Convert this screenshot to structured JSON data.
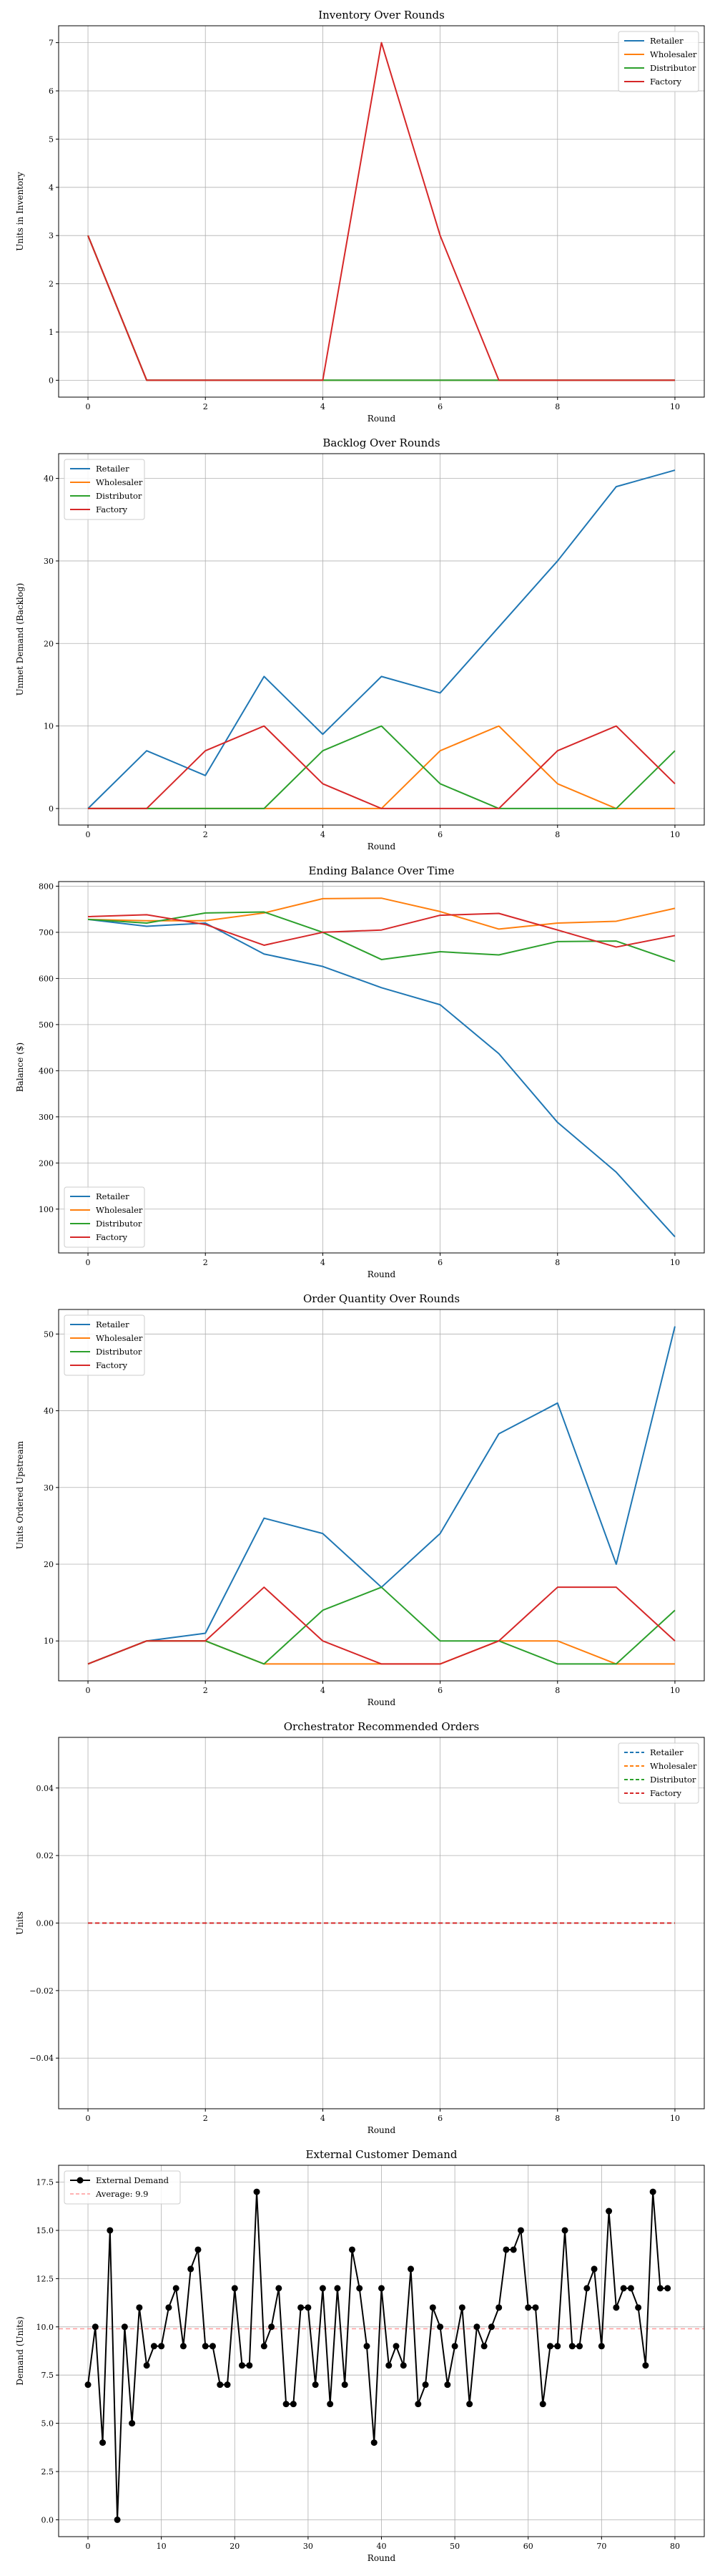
{
  "colors": {
    "retailer": "#1f77b4",
    "wholesaler": "#ff7f0e",
    "distributor": "#2ca02c",
    "factory": "#d62728",
    "demand": "#000000",
    "average": "#ff9999"
  },
  "chart_data": [
    {
      "type": "line",
      "title": "Inventory Over Rounds",
      "xlabel": "Round",
      "ylabel": "Units in Inventory",
      "xlim": [
        -0.5,
        10.5
      ],
      "ylim": [
        -0.35,
        7.35
      ],
      "xticks": [
        0,
        2,
        4,
        6,
        8,
        10
      ],
      "yticks": [
        0,
        1,
        2,
        3,
        4,
        5,
        6,
        7
      ],
      "legend": "top-right",
      "x": [
        0,
        1,
        2,
        3,
        4,
        5,
        6,
        7,
        8,
        9,
        10
      ],
      "series": [
        {
          "name": "Retailer",
          "color": "#1f77b4",
          "values": [
            3,
            0,
            0,
            0,
            0,
            0,
            0,
            0,
            0,
            0,
            0
          ]
        },
        {
          "name": "Wholesaler",
          "color": "#ff7f0e",
          "values": [
            3,
            0,
            0,
            0,
            0,
            0,
            0,
            0,
            0,
            0,
            0
          ]
        },
        {
          "name": "Distributor",
          "color": "#2ca02c",
          "values": [
            3,
            0,
            0,
            0,
            0,
            0,
            0,
            0,
            0,
            0,
            0
          ]
        },
        {
          "name": "Factory",
          "color": "#d62728",
          "values": [
            3,
            0,
            0,
            0,
            0,
            7,
            3,
            0,
            0,
            0,
            0
          ]
        }
      ]
    },
    {
      "type": "line",
      "title": "Backlog Over Rounds",
      "xlabel": "Round",
      "ylabel": "Unmet Demand (Backlog)",
      "xlim": [
        -0.5,
        10.5
      ],
      "ylim": [
        -2,
        43
      ],
      "xticks": [
        0,
        2,
        4,
        6,
        8,
        10
      ],
      "yticks": [
        0,
        10,
        20,
        30,
        40
      ],
      "legend": "top-left",
      "x": [
        0,
        1,
        2,
        3,
        4,
        5,
        6,
        7,
        8,
        9,
        10
      ],
      "series": [
        {
          "name": "Retailer",
          "color": "#1f77b4",
          "values": [
            0,
            7,
            4,
            16,
            9,
            16,
            14,
            22,
            30,
            39,
            41
          ]
        },
        {
          "name": "Wholesaler",
          "color": "#ff7f0e",
          "values": [
            0,
            0,
            0,
            0,
            0,
            0,
            7,
            10,
            3,
            0,
            0
          ]
        },
        {
          "name": "Distributor",
          "color": "#2ca02c",
          "values": [
            0,
            0,
            0,
            0,
            7,
            10,
            3,
            0,
            0,
            0,
            7
          ]
        },
        {
          "name": "Factory",
          "color": "#d62728",
          "values": [
            0,
            0,
            7,
            10,
            3,
            0,
            0,
            0,
            7,
            10,
            3
          ]
        }
      ]
    },
    {
      "type": "line",
      "title": "Ending Balance Over Time",
      "xlabel": "Round",
      "ylabel": "Balance ($)",
      "xlim": [
        -0.5,
        10.5
      ],
      "ylim": [
        5,
        810
      ],
      "xticks": [
        0,
        2,
        4,
        6,
        8,
        10
      ],
      "yticks": [
        100,
        200,
        300,
        400,
        500,
        600,
        700,
        800
      ],
      "legend": "bottom-left",
      "x": [
        0,
        1,
        2,
        3,
        4,
        5,
        6,
        7,
        8,
        9,
        10
      ],
      "series": [
        {
          "name": "Retailer",
          "color": "#1f77b4",
          "values": [
            728,
            713,
            720,
            653,
            626,
            580,
            543,
            437,
            288,
            180,
            40
          ]
        },
        {
          "name": "Wholesaler",
          "color": "#ff7f0e",
          "values": [
            728,
            725,
            725,
            742,
            773,
            774,
            745,
            707,
            720,
            724,
            752
          ]
        },
        {
          "name": "Distributor",
          "color": "#2ca02c",
          "values": [
            728,
            720,
            742,
            744,
            700,
            641,
            658,
            651,
            680,
            681,
            637
          ]
        },
        {
          "name": "Factory",
          "color": "#d62728",
          "values": [
            734,
            738,
            717,
            672,
            700,
            705,
            737,
            741,
            705,
            668,
            693
          ]
        }
      ]
    },
    {
      "type": "line",
      "title": "Order Quantity Over Rounds",
      "xlabel": "Round",
      "ylabel": "Units Ordered Upstream",
      "xlim": [
        -0.5,
        10.5
      ],
      "ylim": [
        4.8,
        53.2
      ],
      "xticks": [
        0,
        2,
        4,
        6,
        8,
        10
      ],
      "yticks": [
        10,
        20,
        30,
        40,
        50
      ],
      "legend": "top-left",
      "x": [
        0,
        1,
        2,
        3,
        4,
        5,
        6,
        7,
        8,
        9,
        10
      ],
      "series": [
        {
          "name": "Retailer",
          "color": "#1f77b4",
          "values": [
            7,
            10,
            11,
            26,
            24,
            17,
            24,
            37,
            41,
            20,
            51
          ]
        },
        {
          "name": "Wholesaler",
          "color": "#ff7f0e",
          "values": [
            7,
            10,
            10,
            7,
            7,
            7,
            7,
            10,
            10,
            7,
            7
          ]
        },
        {
          "name": "Distributor",
          "color": "#2ca02c",
          "values": [
            7,
            10,
            10,
            7,
            14,
            17,
            10,
            10,
            7,
            7,
            14
          ]
        },
        {
          "name": "Factory",
          "color": "#d62728",
          "values": [
            7,
            10,
            10,
            17,
            10,
            7,
            7,
            10,
            17,
            17,
            10
          ]
        }
      ]
    },
    {
      "type": "line",
      "title": "Orchestrator Recommended Orders",
      "xlabel": "Round",
      "ylabel": "Units",
      "xlim": [
        -0.5,
        10.5
      ],
      "ylim": [
        -0.055,
        0.055
      ],
      "xticks": [
        0,
        2,
        4,
        6,
        8,
        10
      ],
      "yticks": [
        -0.04,
        -0.02,
        0.0,
        0.02,
        0.04
      ],
      "ytick_labels": [
        "−0.04",
        "−0.02",
        "0.00",
        "0.02",
        "0.04"
      ],
      "legend": "top-right",
      "dashed": true,
      "x": [
        0,
        1,
        2,
        3,
        4,
        5,
        6,
        7,
        8,
        9,
        10
      ],
      "series": [
        {
          "name": "Retailer",
          "color": "#1f77b4",
          "values": [
            0,
            0,
            0,
            0,
            0,
            0,
            0,
            0,
            0,
            0,
            0
          ]
        },
        {
          "name": "Wholesaler",
          "color": "#ff7f0e",
          "values": [
            0,
            0,
            0,
            0,
            0,
            0,
            0,
            0,
            0,
            0,
            0
          ]
        },
        {
          "name": "Distributor",
          "color": "#2ca02c",
          "values": [
            0,
            0,
            0,
            0,
            0,
            0,
            0,
            0,
            0,
            0,
            0
          ]
        },
        {
          "name": "Factory",
          "color": "#d62728",
          "values": [
            0,
            0,
            0,
            0,
            0,
            0,
            0,
            0,
            0,
            0,
            0
          ]
        }
      ]
    },
    {
      "type": "line",
      "title": "External Customer Demand",
      "xlabel": "Round",
      "ylabel": "Demand (Units)",
      "xlim": [
        -4,
        84
      ],
      "ylim": [
        -0.875,
        18.375
      ],
      "xticks": [
        0,
        10,
        20,
        30,
        40,
        50,
        60,
        70,
        80
      ],
      "yticks": [
        0.0,
        2.5,
        5.0,
        7.5,
        10.0,
        12.5,
        15.0,
        17.5
      ],
      "ytick_labels": [
        "0.0",
        "2.5",
        "5.0",
        "7.5",
        "10.0",
        "12.5",
        "15.0",
        "17.5"
      ],
      "legend": "top-left",
      "average": {
        "label": "Average: 9.9",
        "value": 9.9,
        "color": "#ff9999"
      },
      "series": [
        {
          "name": "External Demand",
          "color": "#000000",
          "markers": true,
          "values": [
            7,
            10,
            4,
            15,
            0,
            10,
            5,
            11,
            8,
            9,
            9,
            11,
            12,
            9,
            13,
            14,
            9,
            9,
            7,
            7,
            12,
            8,
            8,
            17,
            9,
            10,
            12,
            6,
            6,
            11,
            11,
            7,
            12,
            6,
            12,
            7,
            14,
            12,
            9,
            4,
            12,
            8,
            9,
            8,
            13,
            6,
            7,
            11,
            10,
            7,
            9,
            11,
            6,
            10,
            9,
            10,
            11,
            14,
            14,
            15,
            11,
            11,
            6,
            9,
            9,
            15,
            9,
            9,
            12,
            13,
            9,
            16,
            11,
            12,
            12,
            11,
            8,
            17,
            12,
            12
          ]
        }
      ]
    }
  ]
}
